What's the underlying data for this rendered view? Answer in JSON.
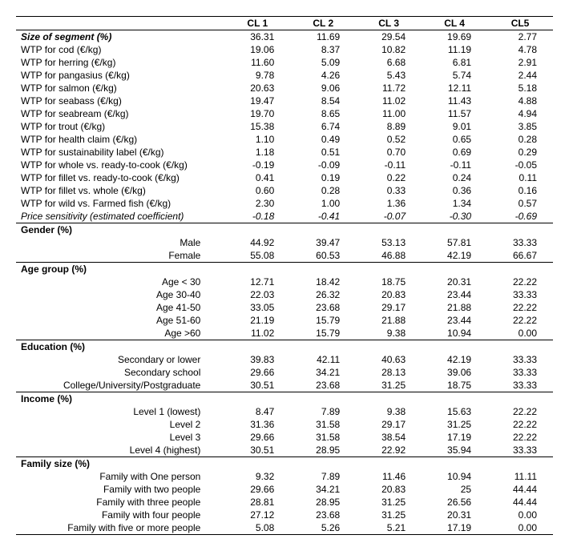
{
  "columns": [
    "CL 1",
    "CL 2",
    "CL 3",
    "CL 4",
    "CL5"
  ],
  "top_rows": [
    {
      "label": "Size of segment (%)",
      "bolditalic": true,
      "vals": [
        "36.31",
        "11.69",
        "29.54",
        "19.69",
        "2.77"
      ]
    },
    {
      "label": "WTP for cod (€/kg)",
      "vals": [
        "19.06",
        "8.37",
        "10.82",
        "11.19",
        "4.78"
      ]
    },
    {
      "label": "WTP for herring (€/kg)",
      "vals": [
        "11.60",
        "5.09",
        "6.68",
        "6.81",
        "2.91"
      ]
    },
    {
      "label": "WTP for pangasius (€/kg)",
      "vals": [
        "9.78",
        "4.26",
        "5.43",
        "5.74",
        "2.44"
      ]
    },
    {
      "label": "WTP for salmon (€/kg)",
      "vals": [
        "20.63",
        "9.06",
        "11.72",
        "12.11",
        "5.18"
      ]
    },
    {
      "label": "WTP for seabass (€/kg)",
      "vals": [
        "19.47",
        "8.54",
        "11.02",
        "11.43",
        "4.88"
      ]
    },
    {
      "label": "WTP for seabream (€/kg)",
      "vals": [
        "19.70",
        "8.65",
        "11.00",
        "11.57",
        "4.94"
      ]
    },
    {
      "label": "WTP for trout (€/kg)",
      "vals": [
        "15.38",
        "6.74",
        "8.89",
        "9.01",
        "3.85"
      ]
    },
    {
      "label": "WTP for health claim (€/kg)",
      "vals": [
        "1.10",
        "0.49",
        "0.52",
        "0.65",
        "0.28"
      ]
    },
    {
      "label": "WTP for sustainability label (€/kg)",
      "vals": [
        "1.18",
        "0.51",
        "0.70",
        "0.69",
        "0.29"
      ]
    },
    {
      "label": "WTP for whole vs. ready-to-cook (€/kg)",
      "vals": [
        "-0.19",
        "-0.09",
        "-0.11",
        "-0.11",
        "-0.05"
      ]
    },
    {
      "label": "WTP for fillet vs. ready-to-cook (€/kg)",
      "vals": [
        "0.41",
        "0.19",
        "0.22",
        "0.24",
        "0.11"
      ]
    },
    {
      "label": "WTP for fillet vs. whole (€/kg)",
      "vals": [
        "0.60",
        "0.28",
        "0.33",
        "0.36",
        "0.16"
      ]
    },
    {
      "label": "WTP for wild vs. Farmed fish (€/kg)",
      "vals": [
        "2.30",
        "1.00",
        "1.36",
        "1.34",
        "0.57"
      ]
    },
    {
      "label": "Price sensitivity (estimated coefficient)",
      "italic": true,
      "vals": [
        "-0.18",
        "-0.41",
        "-0.07",
        "-0.30",
        "-0.69"
      ]
    }
  ],
  "groups": [
    {
      "title": "Gender (%)",
      "rows": [
        {
          "label": "Male",
          "vals": [
            "44.92",
            "39.47",
            "53.13",
            "57.81",
            "33.33"
          ]
        },
        {
          "label": "Female",
          "vals": [
            "55.08",
            "60.53",
            "46.88",
            "42.19",
            "66.67"
          ]
        }
      ]
    },
    {
      "title": "Age group (%)",
      "rows": [
        {
          "label": "Age < 30",
          "vals": [
            "12.71",
            "18.42",
            "18.75",
            "20.31",
            "22.22"
          ]
        },
        {
          "label": "Age 30-40",
          "vals": [
            "22.03",
            "26.32",
            "20.83",
            "23.44",
            "33.33"
          ]
        },
        {
          "label": "Age 41-50",
          "vals": [
            "33.05",
            "23.68",
            "29.17",
            "21.88",
            "22.22"
          ]
        },
        {
          "label": "Age 51-60",
          "vals": [
            "21.19",
            "15.79",
            "21.88",
            "23.44",
            "22.22"
          ]
        },
        {
          "label": "Age >60",
          "vals": [
            "11.02",
            "15.79",
            "9.38",
            "10.94",
            "0.00"
          ]
        }
      ]
    },
    {
      "title": "Education (%)",
      "rows": [
        {
          "label": "Secondary or lower",
          "vals": [
            "39.83",
            "42.11",
            "40.63",
            "42.19",
            "33.33"
          ]
        },
        {
          "label": "Secondary school",
          "vals": [
            "29.66",
            "34.21",
            "28.13",
            "39.06",
            "33.33"
          ]
        },
        {
          "label": "College/University/Postgraduate",
          "vals": [
            "30.51",
            "23.68",
            "31.25",
            "18.75",
            "33.33"
          ]
        }
      ]
    },
    {
      "title": "Income (%)",
      "rows": [
        {
          "label": "Level 1 (lowest)",
          "vals": [
            "8.47",
            "7.89",
            "9.38",
            "15.63",
            "22.22"
          ]
        },
        {
          "label": "Level 2",
          "vals": [
            "31.36",
            "31.58",
            "29.17",
            "31.25",
            "22.22"
          ]
        },
        {
          "label": "Level 3",
          "vals": [
            "29.66",
            "31.58",
            "38.54",
            "17.19",
            "22.22"
          ]
        },
        {
          "label": "Level 4 (highest)",
          "vals": [
            "30.51",
            "28.95",
            "22.92",
            "35.94",
            "33.33"
          ]
        }
      ]
    },
    {
      "title": "Family size (%)",
      "rows": [
        {
          "label": "Family with One person",
          "vals": [
            "9.32",
            "7.89",
            "11.46",
            "10.94",
            "11.11"
          ]
        },
        {
          "label": "Family with two people",
          "vals": [
            "29.66",
            "34.21",
            "20.83",
            "25",
            "44.44"
          ]
        },
        {
          "label": "Family with three people",
          "vals": [
            "28.81",
            "28.95",
            "31.25",
            "26.56",
            "44.44"
          ]
        },
        {
          "label": "Family with four people",
          "vals": [
            "27.12",
            "23.68",
            "31.25",
            "20.31",
            "0.00"
          ]
        },
        {
          "label": "Family with five or more people",
          "vals": [
            "5.08",
            "5.26",
            "5.21",
            "17.19",
            "0.00"
          ]
        }
      ]
    }
  ]
}
